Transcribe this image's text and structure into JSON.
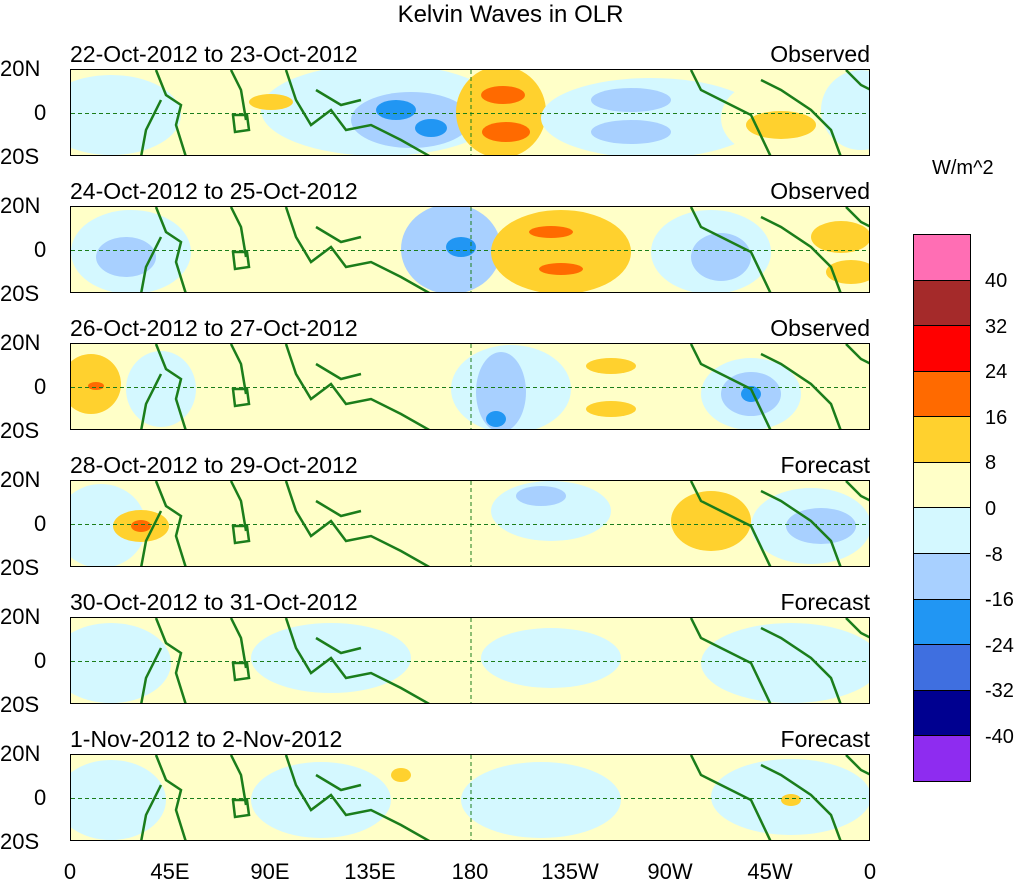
{
  "title": "Kelvin Waves in OLR",
  "units": "W/m^2",
  "lat_labels": {
    "north": "20N",
    "equator": "0",
    "south": "20S"
  },
  "x_tick_labels": [
    "0",
    "45E",
    "90E",
    "135E",
    "180",
    "135W",
    "90W",
    "45W",
    "0"
  ],
  "colorbar": {
    "colors": [
      "#ff6eb4",
      "#a52a2a",
      "#ff0000",
      "#ff6a00",
      "#ffd12e",
      "#ffffc8",
      "#d4f8ff",
      "#a8d0ff",
      "#2196f3",
      "#3f6fe0",
      "#000090",
      "#8e2cf0"
    ],
    "labels": [
      "40",
      "32",
      "24",
      "16",
      "8",
      "0",
      "-8",
      "-16",
      "-24",
      "-32",
      "-40"
    ]
  },
  "panels": [
    {
      "dates": "22-Oct-2012 to 23-Oct-2012",
      "kind": "Observed"
    },
    {
      "dates": "24-Oct-2012 to 25-Oct-2012",
      "kind": "Observed"
    },
    {
      "dates": "26-Oct-2012 to 27-Oct-2012",
      "kind": "Observed"
    },
    {
      "dates": "28-Oct-2012 to 29-Oct-2012",
      "kind": "Forecast"
    },
    {
      "dates": "30-Oct-2012 to 31-Oct-2012",
      "kind": "Forecast"
    },
    {
      "dates": "1-Nov-2012 to 2-Nov-2012",
      "kind": "Forecast"
    }
  ],
  "colors": {
    "coastline": "#1b7d1b",
    "grid": "#000000"
  }
}
